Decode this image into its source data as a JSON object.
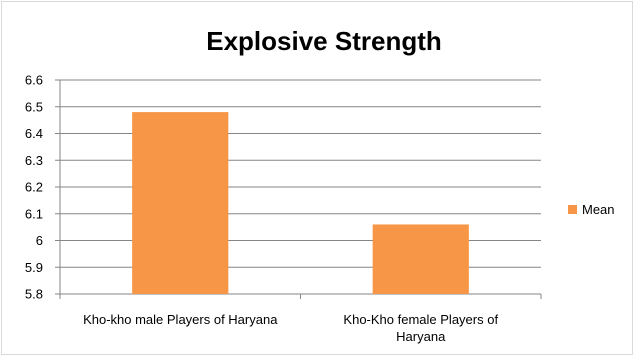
{
  "chart_data": {
    "type": "bar",
    "title": "Explosive Strength",
    "xlabel": "",
    "ylabel": "",
    "categories": [
      [
        "Kho-kho male Players of Haryana"
      ],
      [
        "Kho-Kho female Players of",
        "Haryana"
      ]
    ],
    "series": [
      {
        "name": "Mean",
        "values": [
          6.48,
          6.06
        ],
        "color": "#f79646"
      }
    ],
    "ylim": [
      5.8,
      6.6
    ],
    "yticks": [
      "5.8",
      "5.9",
      "6",
      "6.1",
      "6.2",
      "6.3",
      "6.4",
      "6.5",
      "6.6"
    ],
    "grid": true,
    "legend_position": "right"
  }
}
